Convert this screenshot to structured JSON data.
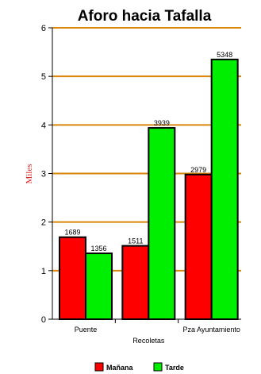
{
  "chart_data": {
    "type": "bar",
    "title": "Aforo hacia Tafalla",
    "ylabel": "Miles",
    "xlabel": "",
    "ylim": [
      0,
      6
    ],
    "yticks": [
      0,
      1,
      2,
      3,
      4,
      5,
      6
    ],
    "grid": true,
    "legend_position": "bottom",
    "categories": [
      "Puente",
      "Recoletas",
      "Pza Ayuntamiento"
    ],
    "series": [
      {
        "name": "Mañana",
        "color": "#ff0000",
        "values": [
          1689,
          1511,
          2979
        ],
        "labels": [
          "1689",
          "1511",
          "2979"
        ]
      },
      {
        "name": "Tarde",
        "color": "#00ee00",
        "values": [
          1356,
          3939,
          5348
        ],
        "labels": [
          "1356",
          "3939",
          "5348"
        ]
      }
    ],
    "value_scale": 1000,
    "gridline_color": "#d9860a"
  }
}
